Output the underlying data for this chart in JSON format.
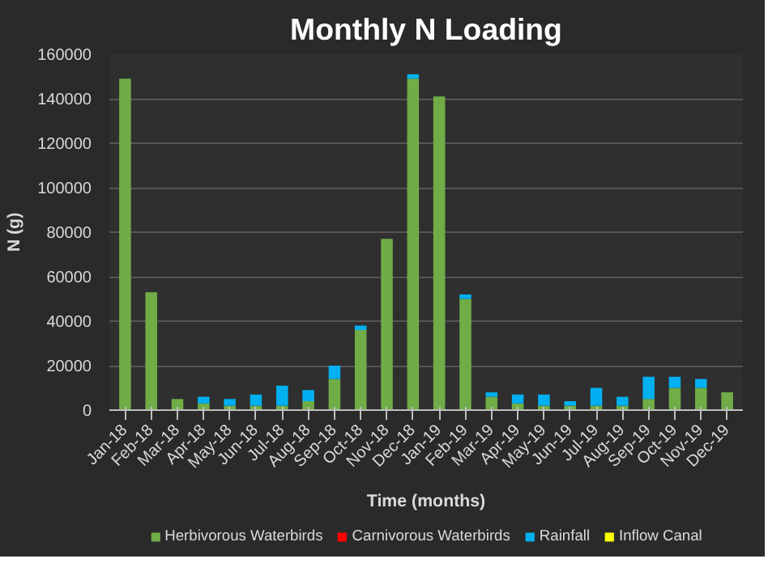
{
  "chart_data": {
    "type": "bar",
    "title": "Monthly N Loading",
    "xlabel": "Time (months)",
    "ylabel": "N (g)",
    "stacked": true,
    "categories": [
      "Jan-18",
      "Feb-18",
      "Mar-18",
      "Apr-18",
      "May-18",
      "Jun-18",
      "Jul-18",
      "Aug-18",
      "Sep-18",
      "Oct-18",
      "Nov-18",
      "Dec-18",
      "Jan-19",
      "Feb-19",
      "Mar-19",
      "Apr-19",
      "May-19",
      "Jun-19",
      "Jul-19",
      "Aug-19",
      "Sep-19",
      "Oct-19",
      "Nov-19",
      "Dec-19"
    ],
    "series": [
      {
        "name": "Herbivorous Waterbirds",
        "color": "#70ad47",
        "values": [
          149000,
          53000,
          5000,
          3000,
          2000,
          2000,
          2000,
          4000,
          14000,
          36000,
          77000,
          149000,
          141000,
          50000,
          6000,
          3000,
          2000,
          2000,
          2000,
          2000,
          5000,
          10000,
          10000,
          8000
        ]
      },
      {
        "name": "Carnivorous Waterbirds",
        "color": "#ff0000",
        "values": [
          0,
          0,
          0,
          0,
          0,
          0,
          0,
          0,
          0,
          0,
          0,
          0,
          0,
          0,
          0,
          0,
          0,
          0,
          0,
          0,
          0,
          0,
          0,
          0
        ]
      },
      {
        "name": "Rainfall",
        "color": "#00b0f0",
        "values": [
          0,
          0,
          0,
          3000,
          3000,
          5000,
          9000,
          5000,
          6000,
          2000,
          0,
          2000,
          0,
          2000,
          2000,
          4000,
          5000,
          2000,
          8000,
          4000,
          10000,
          5000,
          4000,
          0
        ]
      },
      {
        "name": "Inflow Canal",
        "color": "#ffff00",
        "values": [
          0,
          0,
          0,
          0,
          0,
          0,
          0,
          0,
          0,
          0,
          0,
          0,
          0,
          0,
          0,
          0,
          0,
          0,
          0,
          0,
          0,
          0,
          0,
          0
        ]
      }
    ],
    "ylim": [
      0,
      160000
    ],
    "yticks": [
      0,
      20000,
      40000,
      60000,
      80000,
      100000,
      120000,
      140000,
      160000
    ],
    "grid": "y",
    "legend": "bottom"
  }
}
